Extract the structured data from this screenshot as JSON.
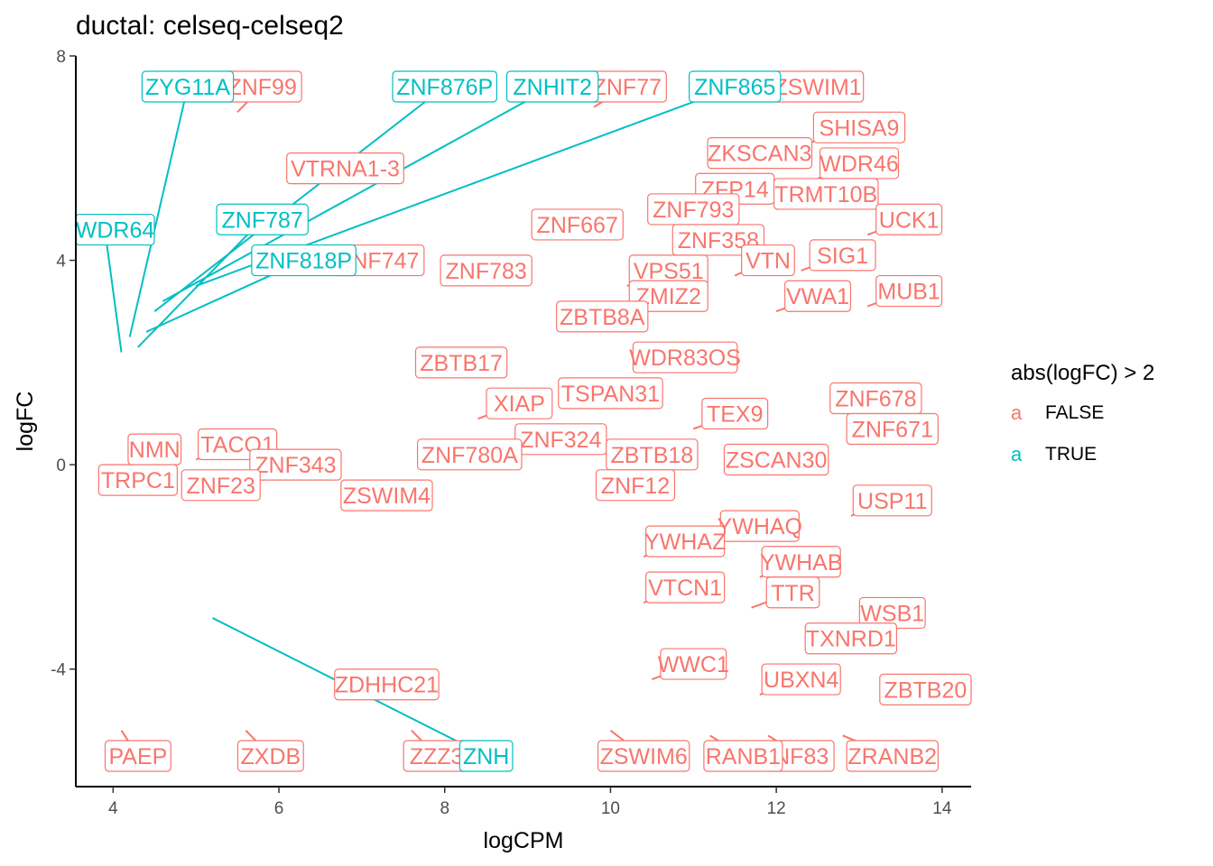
{
  "title": "ductal: celseq-celseq2",
  "chart_data": {
    "type": "scatter",
    "xlabel": "logCPM",
    "ylabel": "logFC",
    "xlim": [
      3.55,
      14.35
    ],
    "ylim": [
      -6.3,
      8.0
    ],
    "xticks": [
      4,
      6,
      8,
      10,
      12,
      14
    ],
    "yticks": [
      -4,
      0,
      4,
      8
    ],
    "legend": {
      "title": "abs(logFC) > 2",
      "position": "right",
      "entries": [
        {
          "label": "FALSE",
          "color": "#F8766D",
          "key": "a"
        },
        {
          "label": "TRUE",
          "color": "#00BFC4",
          "key": "a"
        }
      ]
    },
    "labels_false": [
      {
        "text": "ZSWIM1",
        "x": 12.5,
        "y": 7.4,
        "ax": 12.2,
        "ay": 7.1
      },
      {
        "text": "ZNF99",
        "x": 5.8,
        "y": 7.4,
        "ax": 5.5,
        "ay": 6.9
      },
      {
        "text": "ZNF77",
        "x": 10.2,
        "y": 7.4,
        "ax": 9.8,
        "ay": 7.0
      },
      {
        "text": "SHISA9",
        "x": 13.0,
        "y": 6.6,
        "ax": 12.4,
        "ay": 6.3
      },
      {
        "text": "ZKSCAN3",
        "x": 11.8,
        "y": 6.1,
        "ax": 11.2,
        "ay": 5.8
      },
      {
        "text": "WDR46",
        "x": 13.0,
        "y": 5.9,
        "ax": 12.5,
        "ay": 5.6
      },
      {
        "text": "VTRNA1-3",
        "x": 6.8,
        "y": 5.8,
        "ax": 6.2,
        "ay": 5.5
      },
      {
        "text": "ZFP14",
        "x": 11.5,
        "y": 5.4,
        "ax": 11.0,
        "ay": 5.1
      },
      {
        "text": "TRMT10B",
        "x": 12.6,
        "y": 5.3,
        "ax": 12.0,
        "ay": 5.0
      },
      {
        "text": "ZNF793",
        "x": 11.0,
        "y": 5.0,
        "ax": 10.5,
        "ay": 4.7
      },
      {
        "text": "UCK1",
        "x": 13.6,
        "y": 4.8,
        "ax": 13.1,
        "ay": 4.5
      },
      {
        "text": "ZNF667",
        "x": 9.6,
        "y": 4.7,
        "ax": 9.1,
        "ay": 4.4
      },
      {
        "text": "ZNF358",
        "x": 11.3,
        "y": 4.4,
        "ax": 10.8,
        "ay": 4.1
      },
      {
        "text": "SIG1",
        "x": 12.8,
        "y": 4.1,
        "ax": 12.3,
        "ay": 3.8
      },
      {
        "text": "ZNF783",
        "x": 8.5,
        "y": 3.8,
        "ax": 8.0,
        "ay": 3.5
      },
      {
        "text": "VPS51",
        "x": 10.7,
        "y": 3.8,
        "ax": 10.2,
        "ay": 3.5
      },
      {
        "text": "VTN",
        "x": 11.9,
        "y": 4.0,
        "ax": 11.5,
        "ay": 3.7
      },
      {
        "text": "ZNF747",
        "x": 7.2,
        "y": 4.0,
        "ax": 6.8,
        "ay": 3.7
      },
      {
        "text": "MUB1",
        "x": 13.6,
        "y": 3.4,
        "ax": 13.1,
        "ay": 3.1
      },
      {
        "text": "ZMIZ2",
        "x": 10.7,
        "y": 3.3,
        "ax": 10.2,
        "ay": 3.0
      },
      {
        "text": "VWA1",
        "x": 12.5,
        "y": 3.3,
        "ax": 12.0,
        "ay": 3.0
      },
      {
        "text": "ZBTB8A",
        "x": 9.9,
        "y": 2.9,
        "ax": 9.4,
        "ay": 2.6
      },
      {
        "text": "ZBTB17",
        "x": 8.2,
        "y": 2.0,
        "ax": 7.7,
        "ay": 1.7
      },
      {
        "text": "WDR83OS",
        "x": 10.9,
        "y": 2.1,
        "ax": 10.4,
        "ay": 1.8
      },
      {
        "text": "ZNF678",
        "x": 13.2,
        "y": 1.3,
        "ax": 12.7,
        "ay": 1.0
      },
      {
        "text": "XIAP",
        "x": 8.9,
        "y": 1.2,
        "ax": 8.4,
        "ay": 0.9
      },
      {
        "text": "TSPAN31",
        "x": 10.0,
        "y": 1.4,
        "ax": 9.5,
        "ay": 1.1
      },
      {
        "text": "TEX9",
        "x": 11.5,
        "y": 1.0,
        "ax": 11.0,
        "ay": 0.7
      },
      {
        "text": "ZNF671",
        "x": 13.4,
        "y": 0.7,
        "ax": 12.9,
        "ay": 0.4
      },
      {
        "text": "ZNF324",
        "x": 9.4,
        "y": 0.5,
        "ax": 8.9,
        "ay": 0.2
      },
      {
        "text": "TACO1",
        "x": 5.5,
        "y": 0.4,
        "ax": 5.0,
        "ay": 0.1
      },
      {
        "text": "NMN",
        "x": 4.5,
        "y": 0.3,
        "ax": 4.2,
        "ay": 0.0
      },
      {
        "text": "ZNF780A",
        "x": 8.3,
        "y": 0.2,
        "ax": 7.8,
        "ay": -0.1
      },
      {
        "text": "ZBTB18",
        "x": 10.5,
        "y": 0.2,
        "ax": 10.0,
        "ay": -0.1
      },
      {
        "text": "ZSCAN30",
        "x": 12.0,
        "y": 0.1,
        "ax": 11.5,
        "ay": -0.2
      },
      {
        "text": "ZNF343",
        "x": 6.2,
        "y": 0.0,
        "ax": 5.8,
        "ay": -0.3
      },
      {
        "text": "TRPC1",
        "x": 4.3,
        "y": -0.3,
        "ax": 4.0,
        "ay": -0.5
      },
      {
        "text": "ZNF23",
        "x": 5.3,
        "y": -0.4,
        "ax": 4.9,
        "ay": -0.6
      },
      {
        "text": "ZNF12",
        "x": 10.3,
        "y": -0.4,
        "ax": 9.9,
        "ay": -0.7
      },
      {
        "text": "ZSWIM4",
        "x": 7.3,
        "y": -0.6,
        "ax": 6.9,
        "ay": -0.9
      },
      {
        "text": "USP11",
        "x": 13.4,
        "y": -0.7,
        "ax": 12.9,
        "ay": -1.0
      },
      {
        "text": "YWHAQ",
        "x": 11.8,
        "y": -1.2,
        "ax": 11.3,
        "ay": -1.5
      },
      {
        "text": "YWHAZ",
        "x": 10.9,
        "y": -1.5,
        "ax": 10.4,
        "ay": -1.8
      },
      {
        "text": "YWHAB",
        "x": 12.3,
        "y": -1.9,
        "ax": 11.8,
        "ay": -2.2
      },
      {
        "text": "VTCN1",
        "x": 10.9,
        "y": -2.4,
        "ax": 10.4,
        "ay": -2.7
      },
      {
        "text": "TTR",
        "x": 12.2,
        "y": -2.5,
        "ax": 11.7,
        "ay": -2.8
      },
      {
        "text": "WSB1",
        "x": 13.4,
        "y": -2.9,
        "ax": 12.9,
        "ay": -3.2
      },
      {
        "text": "TXNRD1",
        "x": 12.9,
        "y": -3.4,
        "ax": 12.4,
        "ay": -3.7
      },
      {
        "text": "WWC1",
        "x": 11.0,
        "y": -3.9,
        "ax": 10.5,
        "ay": -4.2
      },
      {
        "text": "UBXN4",
        "x": 12.3,
        "y": -4.2,
        "ax": 11.8,
        "ay": -4.5
      },
      {
        "text": "ZBTB20",
        "x": 13.8,
        "y": -4.4,
        "ax": 13.3,
        "ay": -4.7
      },
      {
        "text": "PAEP",
        "x": 4.3,
        "y": -5.7,
        "ax": 4.1,
        "ay": -5.2
      },
      {
        "text": "ZXDB",
        "x": 5.9,
        "y": -5.7,
        "ax": 5.6,
        "ay": -5.2
      },
      {
        "text": "ZZZ3",
        "x": 7.9,
        "y": -5.7,
        "ax": 7.6,
        "ay": -5.2
      },
      {
        "text": "ZSWIM6",
        "x": 10.4,
        "y": -5.7,
        "ax": 10.0,
        "ay": -5.2
      },
      {
        "text": "ZRANB2",
        "x": 13.4,
        "y": -5.7,
        "ax": 12.8,
        "ay": -5.3
      },
      {
        "text": "ZDHHC21",
        "x": 7.3,
        "y": -4.3,
        "ax": 6.9,
        "ay": -4.0
      },
      {
        "text": "NF83",
        "x": 12.3,
        "y": -5.7,
        "ax": 11.9,
        "ay": -5.3
      },
      {
        "text": "RANB1",
        "x": 11.6,
        "y": -5.7,
        "ax": 11.2,
        "ay": -5.3
      }
    ],
    "labels_true": [
      {
        "text": "ZYG11A",
        "x": 4.9,
        "y": 7.4,
        "ax": 4.2,
        "ay": 2.5
      },
      {
        "text": "ZNF876P",
        "x": 8.0,
        "y": 7.4,
        "ax": 4.5,
        "ay": 3.0
      },
      {
        "text": "ZNHIT2",
        "x": 9.3,
        "y": 7.4,
        "ax": 4.6,
        "ay": 3.2
      },
      {
        "text": "ZNF865",
        "x": 11.5,
        "y": 7.4,
        "ax": 5.0,
        "ay": 3.5
      },
      {
        "text": "ZNF787",
        "x": 5.8,
        "y": 4.8,
        "ax": 4.3,
        "ay": 2.3
      },
      {
        "text": "ZNF818P",
        "x": 6.3,
        "y": 4.0,
        "ax": 4.4,
        "ay": 2.6
      },
      {
        "text": "WDR64",
        "x": 3.9,
        "y": 4.6,
        "ax": 4.1,
        "ay": 2.2
      },
      {
        "text": "ZNH",
        "x": 8.5,
        "y": -5.7,
        "ax": 5.2,
        "ay": -3.0
      }
    ]
  }
}
